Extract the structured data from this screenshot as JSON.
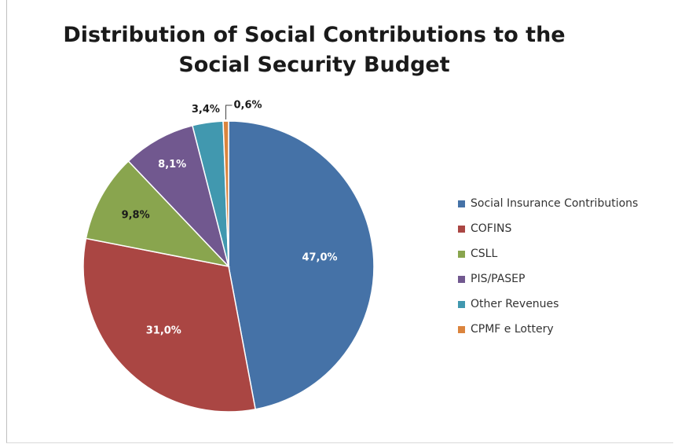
{
  "chart_data": {
    "type": "pie",
    "title_line1": "Distribution of Social Contributions  to the",
    "title_line2": "Social Security Budget",
    "slices": [
      {
        "name": "Social Insurance Contributions",
        "value": 47.0,
        "label": "47,0%",
        "color": "#4572a7",
        "label_color": "#ffffff"
      },
      {
        "name": "COFINS",
        "value": 31.0,
        "label": "31,0%",
        "color": "#aa4643",
        "label_color": "#ffffff"
      },
      {
        "name": "CSLL",
        "value": 9.8,
        "label": "9,8%",
        "color": "#89a54e",
        "label_color": "#1a1a1a"
      },
      {
        "name": "PIS/PASEP",
        "value": 8.1,
        "label": "8,1%",
        "color": "#71588f",
        "label_color": "#ffffff"
      },
      {
        "name": "Other Revenues",
        "value": 3.4,
        "label": "3,4%",
        "color": "#4198af",
        "label_color": "#1a1a1a"
      },
      {
        "name": "CPMF e Lottery",
        "value": 0.6,
        "label": "0,6%",
        "color": "#db843d",
        "label_color": "#1a1a1a"
      }
    ],
    "legend_position": "right"
  }
}
